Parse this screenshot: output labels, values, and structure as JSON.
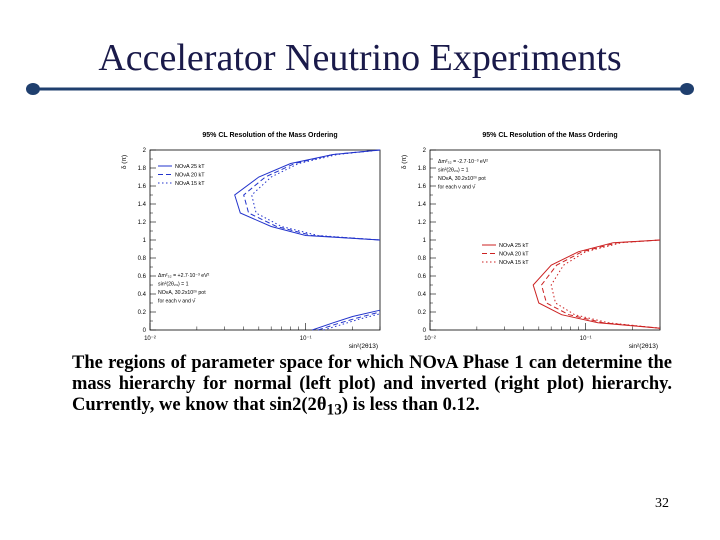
{
  "slide": {
    "title": "Accelerator Neutrino Experiments",
    "caption_parts": [
      "The regions of parameter space for which NO",
      "ν",
      "A Phase 1 can determine the mass hierarchy for normal (left plot) and inverted (right plot) hierarchy.  Currently, we know that sin2(2",
      "θ",
      "13",
      ") is less than 0.12."
    ],
    "page_number": "32",
    "accent_color": "#1f3f6e"
  },
  "chart_data": [
    {
      "type": "line",
      "title": "95% CL Resolution of the Mass Ordering",
      "xlabel": "sin²(2θ13)",
      "ylabel": "δ (π)",
      "xscale": "log",
      "xlim": [
        0.01,
        0.3
      ],
      "ylim": [
        0,
        2
      ],
      "x_tick_labels": [
        "10⁻²",
        "10⁻¹"
      ],
      "y_ticks": [
        "0",
        "0.2",
        "0.4",
        "0.6",
        "0.8",
        "1",
        "1.2",
        "1.4",
        "1.6",
        "1.8",
        "2"
      ],
      "color": "#2233cc",
      "legend_position": "top-left",
      "legend": [
        "NOνA 25 kT",
        "NOνA 20 kT",
        "NOνA 15 kT"
      ],
      "annotation": [
        "Δm²₃₂ = +2.7·10⁻³ eV²",
        "sin²(2θ₂₃) = 1",
        "NOνA, 30.2x10²⁰ pot",
        "for each ν and ν̄"
      ],
      "annotation_position": "bottom-left",
      "series": [
        {
          "name": "NOνA 25 kT",
          "style": "solid",
          "upper": {
            "x": [
              0.3,
              0.15,
              0.08,
              0.05,
              0.035,
              0.038,
              0.06,
              0.1,
              0.3
            ],
            "y": [
              2.0,
              1.95,
              1.85,
              1.7,
              1.5,
              1.3,
              1.15,
              1.05,
              1.0
            ]
          },
          "lower": {
            "x": [
              0.11,
              0.15,
              0.2,
              0.3
            ],
            "y": [
              0.0,
              0.08,
              0.15,
              0.22
            ]
          }
        },
        {
          "name": "NOνA 20 kT",
          "style": "dashed",
          "upper": {
            "x": [
              0.3,
              0.15,
              0.085,
              0.055,
              0.04,
              0.043,
              0.065,
              0.11,
              0.3
            ],
            "y": [
              2.0,
              1.95,
              1.85,
              1.7,
              1.5,
              1.3,
              1.15,
              1.05,
              1.0
            ]
          },
          "lower": {
            "x": [
              0.12,
              0.16,
              0.21,
              0.3
            ],
            "y": [
              0.0,
              0.07,
              0.13,
              0.2
            ]
          }
        },
        {
          "name": "NOνA 15 kT",
          "style": "dotted",
          "upper": {
            "x": [
              0.3,
              0.16,
              0.09,
              0.06,
              0.045,
              0.048,
              0.07,
              0.12,
              0.3
            ],
            "y": [
              2.0,
              1.95,
              1.85,
              1.7,
              1.5,
              1.3,
              1.15,
              1.05,
              1.0
            ]
          },
          "lower": {
            "x": [
              0.13,
              0.17,
              0.22,
              0.3
            ],
            "y": [
              0.0,
              0.06,
              0.12,
              0.18
            ]
          }
        }
      ]
    },
    {
      "type": "line",
      "title": "95% CL Resolution of the Mass Ordering",
      "xlabel": "sin²(2θ13)",
      "ylabel": "δ (π)",
      "xscale": "log",
      "xlim": [
        0.01,
        0.3
      ],
      "ylim": [
        0,
        2
      ],
      "x_tick_labels": [
        "10⁻²",
        "10⁻¹"
      ],
      "y_ticks": [
        "0",
        "0.2",
        "0.4",
        "0.6",
        "0.8",
        "1",
        "1.2",
        "1.4",
        "1.6",
        "1.8",
        "2"
      ],
      "color": "#cc2222",
      "legend_position": "center-right",
      "legend": [
        "NOνA 25 kT",
        "NOνA 20 kT",
        "NOνA 15 kT"
      ],
      "annotation": [
        "Δm²₃₂ = -2.7·10⁻³ eV²",
        "sin²(2θ₂₃) = 1",
        "NOνA, 30.2x10²⁰ pot",
        "for each ν and ν̄"
      ],
      "annotation_position": "top-left",
      "series": [
        {
          "name": "NOνA 25 kT",
          "style": "solid",
          "upper": {
            "x": [
              0.3,
              0.15,
              0.09,
              0.06,
              0.046,
              0.05,
              0.07,
              0.12,
              0.3
            ],
            "y": [
              1.0,
              0.97,
              0.87,
              0.72,
              0.5,
              0.3,
              0.17,
              0.08,
              0.02
            ]
          }
        },
        {
          "name": "NOνA 20 kT",
          "style": "dashed",
          "upper": {
            "x": [
              0.3,
              0.16,
              0.095,
              0.065,
              0.052,
              0.056,
              0.078,
              0.13,
              0.3
            ],
            "y": [
              1.0,
              0.97,
              0.87,
              0.72,
              0.5,
              0.3,
              0.17,
              0.08,
              0.02
            ]
          }
        },
        {
          "name": "NOνA 15 kT",
          "style": "dotted",
          "upper": {
            "x": [
              0.3,
              0.17,
              0.1,
              0.072,
              0.06,
              0.064,
              0.085,
              0.14,
              0.3
            ],
            "y": [
              1.0,
              0.97,
              0.87,
              0.72,
              0.5,
              0.3,
              0.17,
              0.08,
              0.02
            ]
          }
        }
      ]
    }
  ]
}
